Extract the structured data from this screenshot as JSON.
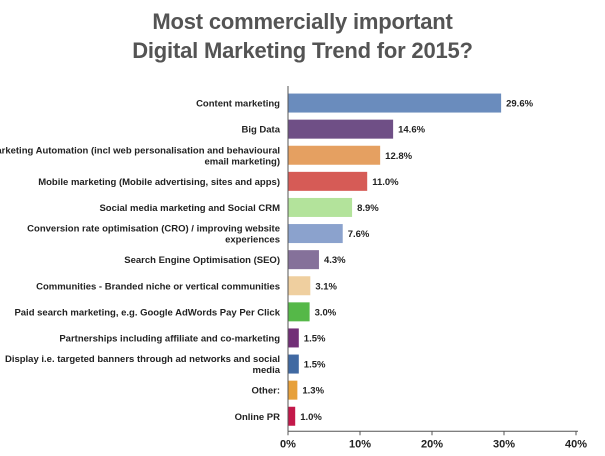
{
  "chart_data": {
    "type": "bar",
    "orientation": "horizontal",
    "title_lines": [
      "Most commercially important",
      "Digital Marketing Trend for 2015?"
    ],
    "categories": [
      [
        "Content marketing"
      ],
      [
        "Big Data"
      ],
      [
        "Marketing Automation (incl web personalisation and behavioural",
        "email marketing)"
      ],
      [
        "Mobile marketing (Mobile advertising, sites and apps)"
      ],
      [
        "Social media marketing and Social CRM"
      ],
      [
        "Conversion rate optimisation (CRO) / improving website",
        "experiences"
      ],
      [
        "Search Engine Optimisation (SEO)"
      ],
      [
        "Communities - Branded niche or vertical communities"
      ],
      [
        "Paid search marketing, e.g. Google AdWords Pay Per Click"
      ],
      [
        "Partnerships including affiliate and co-marketing"
      ],
      [
        "Display i.e. targeted banners through ad networks and social",
        "media"
      ],
      [
        "Other:"
      ],
      [
        "Online PR"
      ]
    ],
    "values": [
      29.6,
      14.6,
      12.8,
      11.0,
      8.9,
      7.6,
      4.3,
      3.1,
      3.0,
      1.5,
      1.5,
      1.3,
      1.0
    ],
    "value_labels": [
      "29.6%",
      "14.6%",
      "12.8%",
      "11.0%",
      "8.9%",
      "7.6%",
      "4.3%",
      "3.1%",
      "3.0%",
      "1.5%",
      "1.5%",
      "1.3%",
      "1.0%"
    ],
    "colors": [
      "#6a8cbd",
      "#6f4f86",
      "#e5a061",
      "#d65b56",
      "#b3e39b",
      "#8ba2cd",
      "#85719a",
      "#efcf9f",
      "#55b848",
      "#722f77",
      "#4069a2",
      "#e7a03a",
      "#c3184a"
    ],
    "xlim": [
      0,
      40
    ],
    "x_ticks": [
      "0%",
      "10%",
      "20%",
      "30%",
      "40%"
    ],
    "grid": false
  }
}
